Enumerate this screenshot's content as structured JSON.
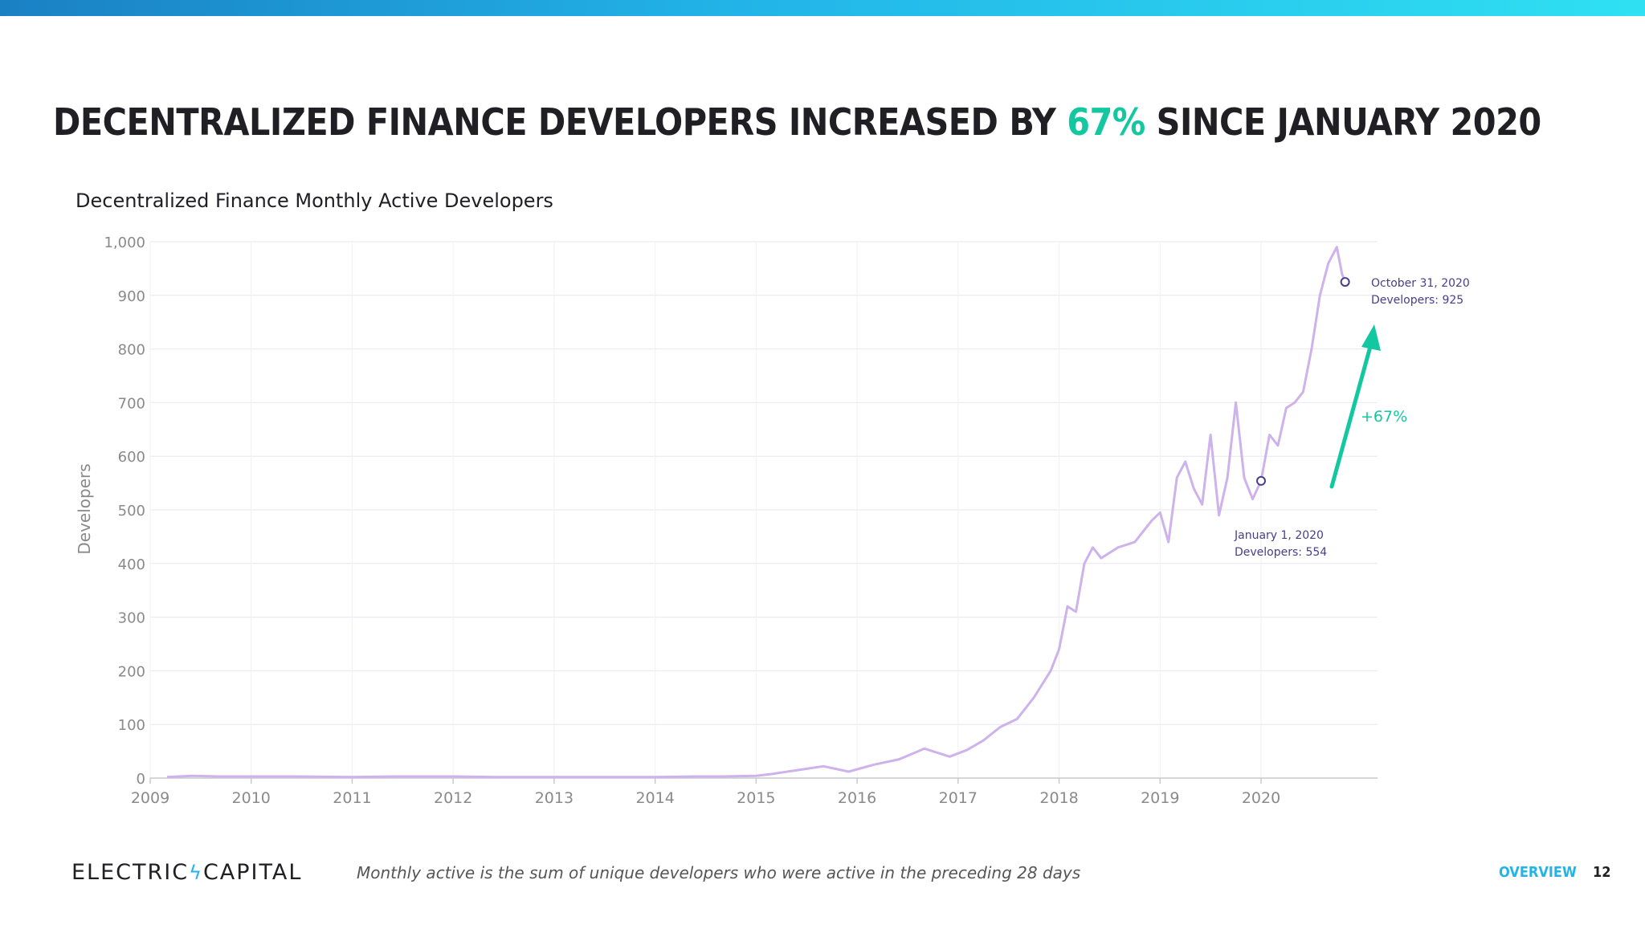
{
  "headline": {
    "prefix": "DECENTRALIZED FINANCE DEVELOPERS INCREASED BY ",
    "highlight": "67%",
    "suffix": " SINCE JANUARY 2020"
  },
  "colors": {
    "accent": "#13c8a0",
    "line": "#cdb2ec",
    "annotation": "#4a3d8c",
    "brand": "#22b4e8",
    "grid": "#e8e6ef",
    "axis_text": "#8a8a8a"
  },
  "chart_data": {
    "type": "line",
    "title": "Decentralized Finance Monthly Active Developers",
    "xlabel": "",
    "ylabel": "Developers",
    "xlim": [
      2009.0,
      2021.0
    ],
    "ylim": [
      0,
      1000
    ],
    "x_ticks": [
      "2009",
      "2010",
      "2011",
      "2012",
      "2013",
      "2014",
      "2015",
      "2016",
      "2017",
      "2018",
      "2019",
      "2020"
    ],
    "y_ticks": [
      "0",
      "100",
      "200",
      "300",
      "400",
      "500",
      "600",
      "700",
      "800",
      "900",
      "1,000"
    ],
    "y_tick_values": [
      0,
      100,
      200,
      300,
      400,
      500,
      600,
      700,
      800,
      900,
      1000
    ],
    "grid": true,
    "series": [
      {
        "x": [
          "2009-03",
          "2009-06",
          "2009-09",
          "2010-01",
          "2010-06",
          "2011-01",
          "2011-06",
          "2012-01",
          "2012-06",
          "2013-01",
          "2013-06",
          "2014-01",
          "2014-06",
          "2014-09",
          "2015-01",
          "2015-03",
          "2015-06",
          "2015-09",
          "2015-12",
          "2016-03",
          "2016-06",
          "2016-09",
          "2016-12",
          "2017-02",
          "2017-04",
          "2017-06",
          "2017-08",
          "2017-10",
          "2017-12",
          "2018-01",
          "2018-02",
          "2018-03",
          "2018-04",
          "2018-05",
          "2018-06",
          "2018-08",
          "2018-10",
          "2018-12",
          "2019-01",
          "2019-02",
          "2019-03",
          "2019-04",
          "2019-05",
          "2019-06",
          "2019-07",
          "2019-08",
          "2019-09",
          "2019-10",
          "2019-11",
          "2019-12",
          "2020-01",
          "2020-02",
          "2020-03",
          "2020-04",
          "2020-05",
          "2020-06",
          "2020-07",
          "2020-08",
          "2020-09",
          "2020-10",
          "2020-10-20",
          "2020-10-31"
        ],
        "y": [
          2,
          4,
          3,
          3,
          3,
          2,
          3,
          3,
          2,
          2,
          2,
          2,
          3,
          3,
          4,
          8,
          15,
          22,
          12,
          25,
          35,
          55,
          40,
          52,
          70,
          95,
          110,
          150,
          200,
          240,
          320,
          310,
          400,
          430,
          410,
          430,
          440,
          480,
          495,
          440,
          560,
          590,
          540,
          510,
          640,
          490,
          560,
          700,
          560,
          520,
          554,
          640,
          620,
          690,
          700,
          720,
          800,
          900,
          960,
          990,
          940,
          925
        ]
      }
    ],
    "annotations": [
      {
        "date": "January 1, 2020",
        "developers": 554,
        "label_line1": "January 1, 2020",
        "label_line2": "Developers: 554"
      },
      {
        "date": "October 31, 2020",
        "developers": 925,
        "label_line1": "October 31, 2020",
        "label_line2": "Developers: 925"
      }
    ],
    "change_label": "+67%"
  },
  "footer": {
    "logo_left": "ELECTRIC",
    "logo_bolt": "ϟ",
    "logo_right": "CAPITAL",
    "note": "Monthly active is the sum of unique developers who were active in the preceding 28 days",
    "section": "OVERVIEW",
    "page": "12"
  }
}
